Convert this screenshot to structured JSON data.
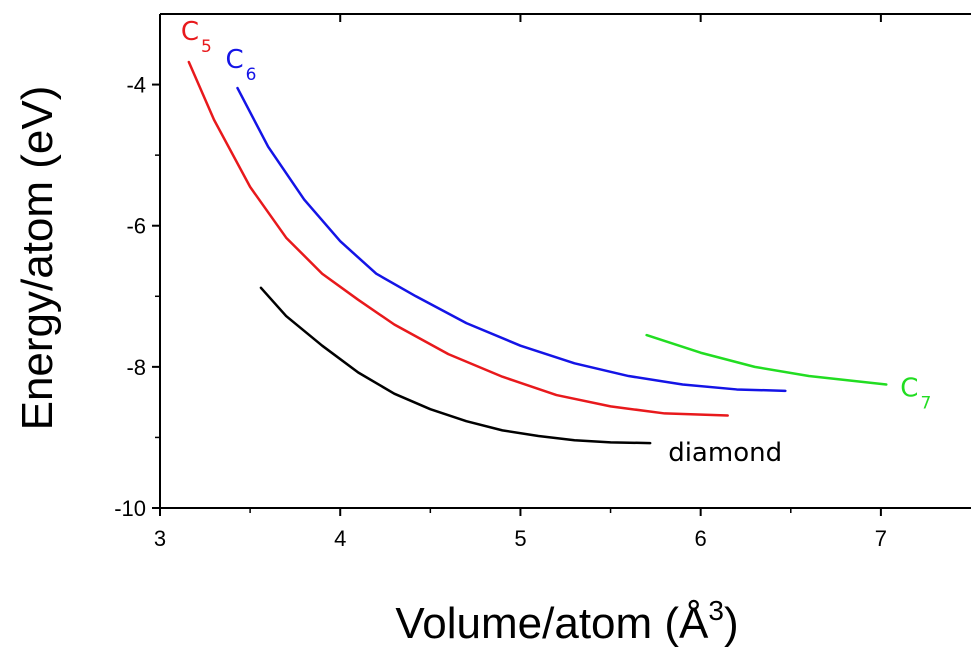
{
  "chart_data": {
    "type": "line",
    "xlabel": "Volume/atom (Å",
    "xlabel_sup": "3",
    "xlabel_close": ")",
    "ylabel": "Energy/atom (eV)",
    "xlim": [
      3,
      7.5
    ],
    "ylim": [
      -10,
      -3
    ],
    "xticks": [
      3,
      4,
      5,
      6,
      7
    ],
    "xtick_labels": [
      "3",
      "4",
      "5",
      "6",
      "7"
    ],
    "yticks": [
      -10,
      -8,
      -6,
      -4
    ],
    "ytick_labels": [
      "-10",
      "-8",
      "-6",
      "-4"
    ],
    "grid": false,
    "series": [
      {
        "name": "diamond",
        "label_main": "diamond",
        "label_sub": "",
        "color": "#000000",
        "x": [
          3.56,
          3.7,
          3.9,
          4.1,
          4.3,
          4.5,
          4.7,
          4.9,
          5.1,
          5.3,
          5.5,
          5.72
        ],
        "y": [
          -6.88,
          -7.28,
          -7.7,
          -8.08,
          -8.38,
          -8.6,
          -8.77,
          -8.9,
          -8.98,
          -9.04,
          -9.07,
          -9.08
        ]
      },
      {
        "name": "C5",
        "label_main": "C",
        "label_sub": "5",
        "color": "#e8191c",
        "x": [
          3.16,
          3.3,
          3.5,
          3.7,
          3.9,
          4.1,
          4.3,
          4.6,
          4.9,
          5.2,
          5.5,
          5.8,
          6.15
        ],
        "y": [
          -3.68,
          -4.5,
          -5.45,
          -6.17,
          -6.68,
          -7.05,
          -7.4,
          -7.82,
          -8.14,
          -8.4,
          -8.56,
          -8.66,
          -8.69
        ]
      },
      {
        "name": "C6",
        "label_main": "C",
        "label_sub": "6",
        "color": "#1414e6",
        "x": [
          3.43,
          3.6,
          3.8,
          4.0,
          4.2,
          4.42,
          4.7,
          5.0,
          5.3,
          5.6,
          5.9,
          6.2,
          6.47
        ],
        "y": [
          -4.05,
          -4.88,
          -5.63,
          -6.22,
          -6.68,
          -7.0,
          -7.38,
          -7.7,
          -7.95,
          -8.13,
          -8.25,
          -8.32,
          -8.34
        ]
      },
      {
        "name": "C7",
        "label_main": "C",
        "label_sub": "7",
        "color": "#22dd22",
        "x": [
          5.7,
          6.0,
          6.3,
          6.6,
          7.03
        ],
        "y": [
          -7.55,
          -7.8,
          -8.0,
          -8.13,
          -8.25
        ]
      }
    ]
  }
}
